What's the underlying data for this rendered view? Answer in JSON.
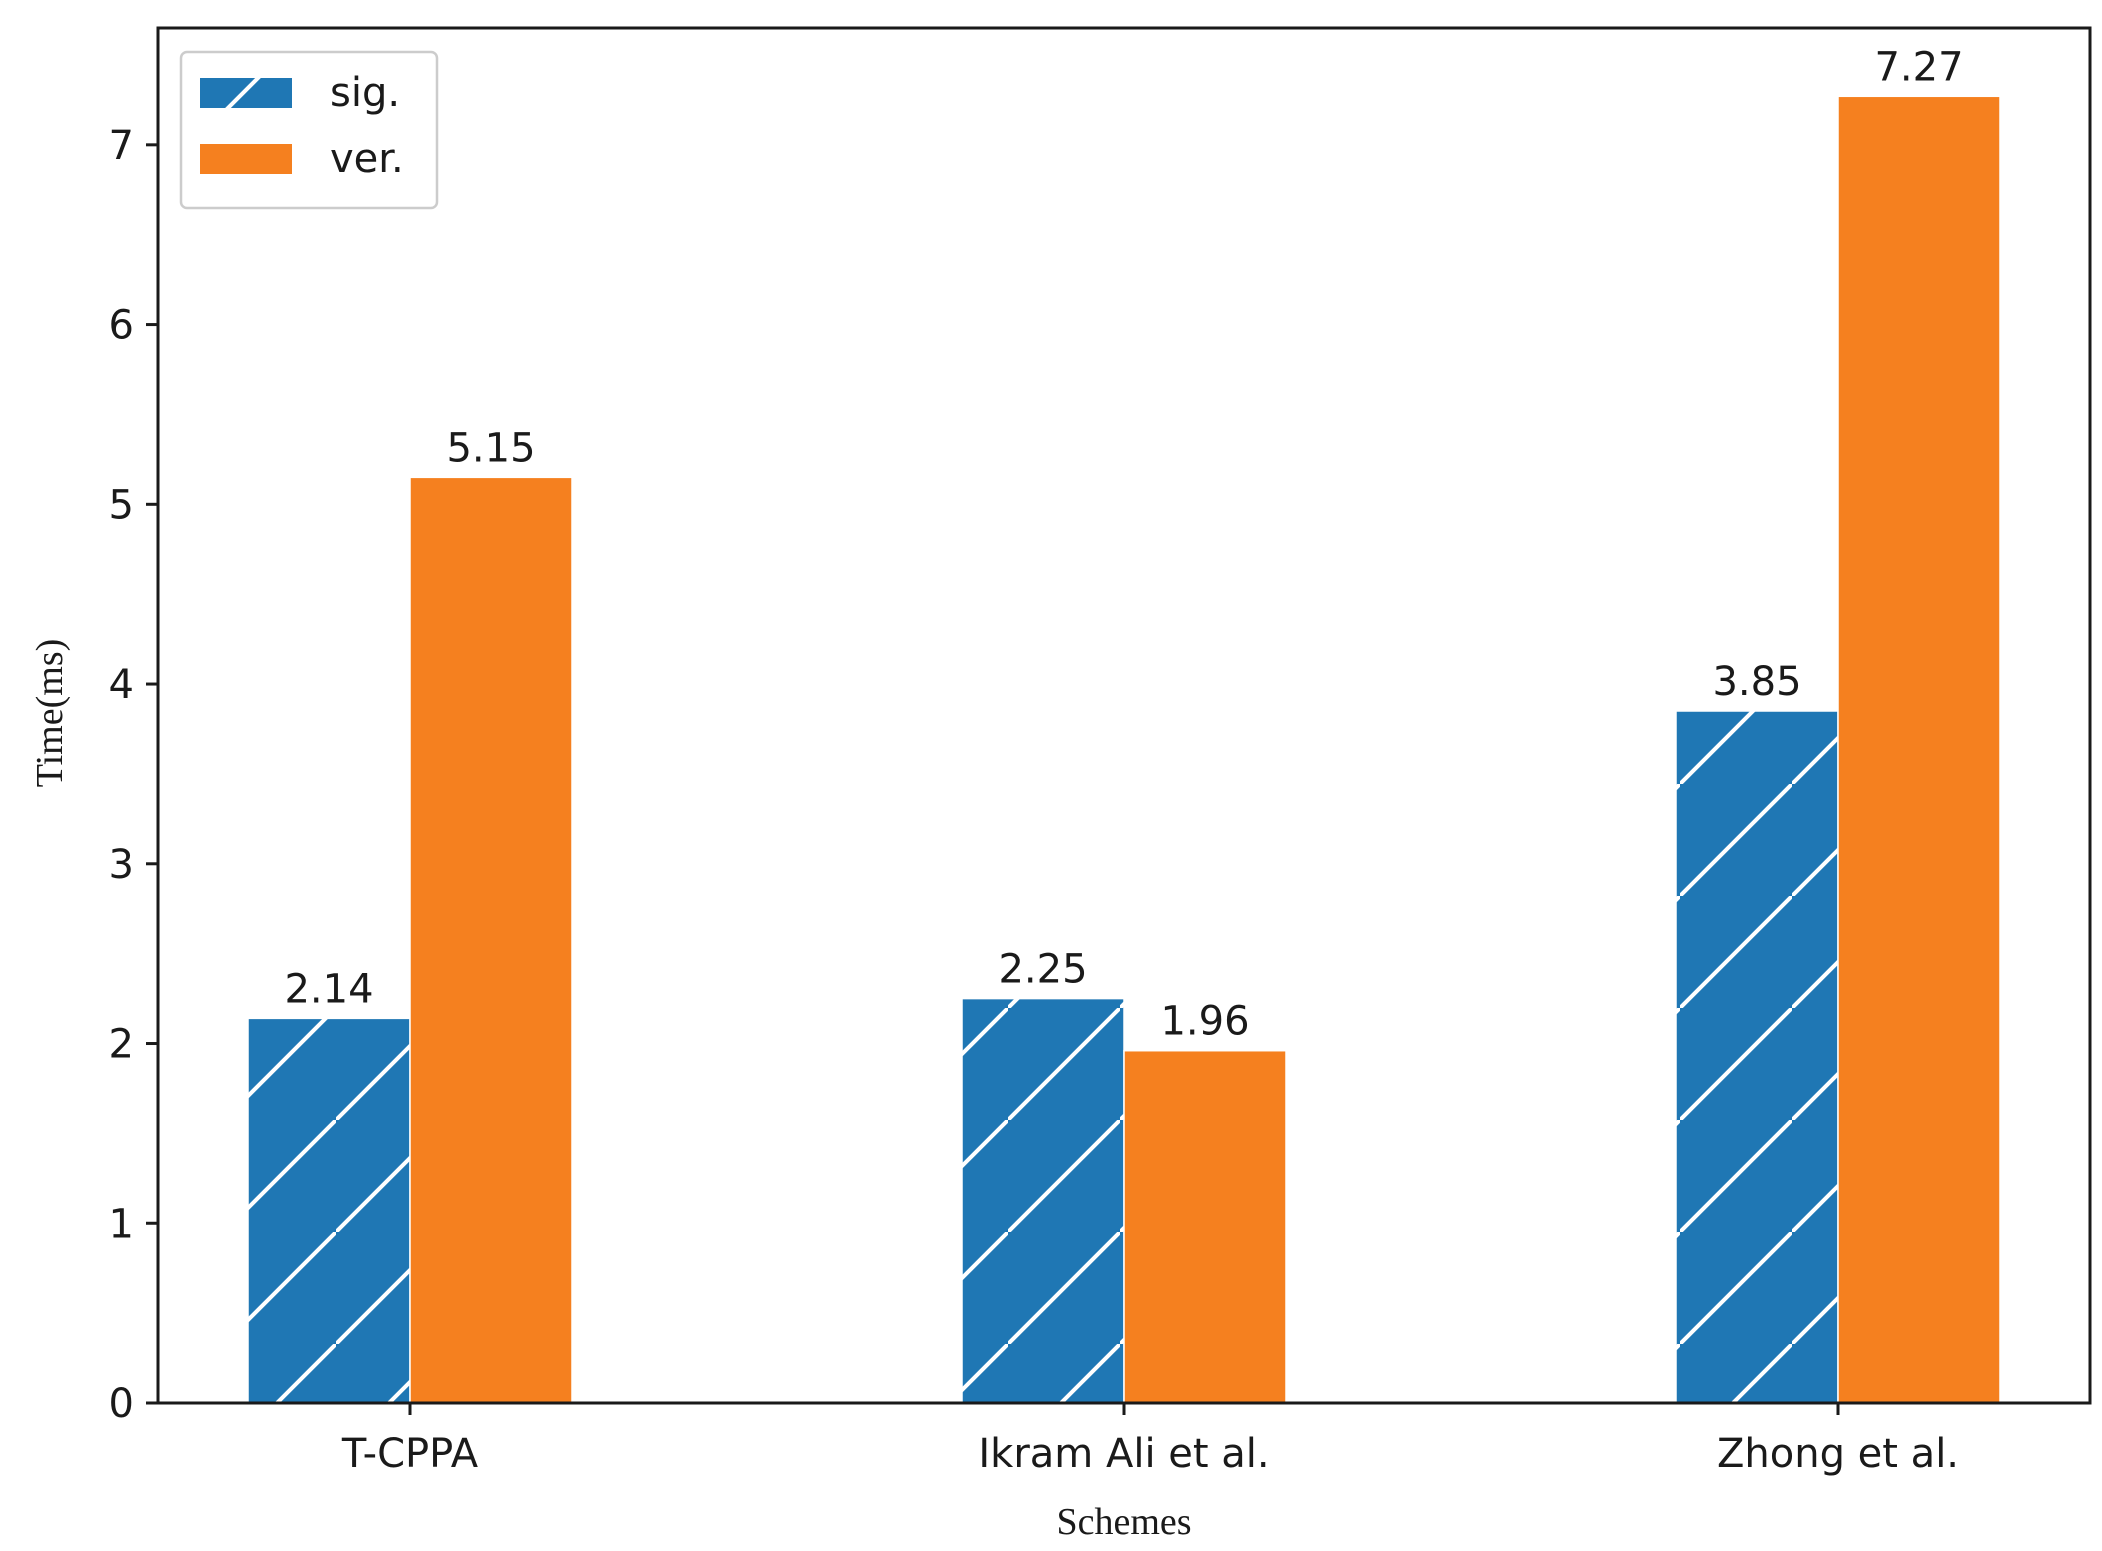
{
  "chart_data": {
    "type": "bar",
    "title": "",
    "xlabel": "Schemes",
    "ylabel": "Time(ms)",
    "categories": [
      "T-CPPA",
      "Ikram Ali et al.",
      "Zhong et al."
    ],
    "series": [
      {
        "name": "sig.",
        "values": [
          2.14,
          2.25,
          3.85
        ],
        "labels": [
          "2.14",
          "2.25",
          "3.85"
        ],
        "color": "#1f77b4",
        "hatch": "diagonal"
      },
      {
        "name": "ver.",
        "values": [
          5.15,
          1.96,
          7.27
        ],
        "labels": [
          "5.15",
          "1.96",
          "7.27"
        ],
        "color": "#f5801f",
        "hatch": "none"
      }
    ],
    "ylim": [
      0,
      7.65
    ],
    "yticks": [
      0,
      1,
      2,
      3,
      4,
      5,
      6,
      7
    ],
    "ytick_labels": [
      "0",
      "1",
      "2",
      "3",
      "4",
      "5",
      "6",
      "7"
    ],
    "grid": false,
    "legend_position": "top-left"
  }
}
